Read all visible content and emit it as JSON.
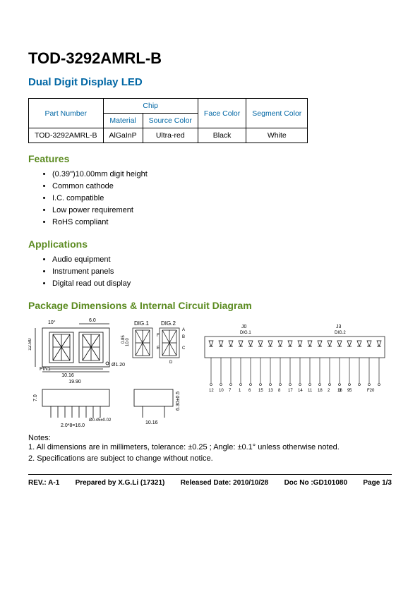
{
  "title": "TOD-3292AMRL-B",
  "subtitle": "Dual Digit Display LED",
  "table": {
    "headers": {
      "part_number": "Part Number",
      "chip": "Chip",
      "material": "Material",
      "source_color": "Source Color",
      "face_color": "Face Color",
      "segment_color": "Segment Color"
    },
    "row": {
      "part_number": "TOD-3292AMRL-B",
      "material": "AlGaInP",
      "source_color": "Ultra-red",
      "face_color": "Black",
      "segment_color": "White"
    }
  },
  "features": {
    "heading": "Features",
    "items": [
      "(0.39\")10.00mm digit height",
      "Common cathode",
      "I.C. compatible",
      "Low power requirement",
      "RoHS compliant"
    ]
  },
  "applications": {
    "heading": "Applications",
    "items": [
      "Audio equipment",
      "Instrument panels",
      "Digital read out display"
    ]
  },
  "pkg_heading": "Package Dimensions & Internal Circuit Diagram",
  "diagram": {
    "front": {
      "width_total": "19.90",
      "width_inner": "10.16",
      "height": "12.80",
      "corner": "10°",
      "top_dim": "6.0",
      "dp_dia": "Ø1.20",
      "pin1": "PIN1"
    },
    "digits": {
      "d1": "DIG.1",
      "d2": "DIG.2",
      "h": "10.0",
      "gap": "0.85",
      "segs": [
        "A",
        "B",
        "C",
        "D",
        "E",
        "F",
        "G",
        "P"
      ]
    },
    "side": {
      "height": "7.0",
      "pin_pitch": "2.0*8=16.0",
      "pin_w": "Ø0.45±0.02"
    },
    "side2": {
      "width": "10.16",
      "height": "6.30±0.5"
    },
    "circuit": {
      "j0": "J0",
      "j3": "J3",
      "dig1": "DIG.1",
      "dig2": "DIG.2",
      "pins_left": [
        "12",
        "10",
        "7",
        "1",
        "6",
        "15",
        "13",
        "8",
        "17",
        "14",
        "11",
        "18",
        "2",
        "16",
        "9"
      ],
      "pins_right": [
        "3",
        "5",
        "F20"
      ]
    }
  },
  "notes": {
    "head": "Notes:",
    "n1": "1. All dimensions are in millimeters, tolerance: ±0.25 ; Angle: ±0.1° unless otherwise noted.",
    "n2": "2. Specifications are subject to change without notice."
  },
  "footer": {
    "rev": "REV.: A-1",
    "prepared": "Prepared by X.G.Li (17321)",
    "released": "Released Date: 2010/10/28",
    "docno": "Doc No :GD101080",
    "page": "Page 1/3"
  },
  "colors": {
    "heading_blue": "#0066a4",
    "heading_green": "#5a8a1f",
    "stroke": "#000000"
  }
}
